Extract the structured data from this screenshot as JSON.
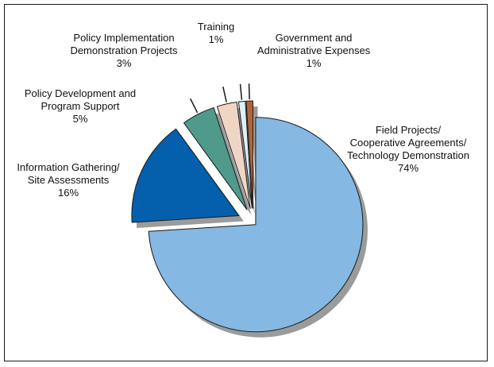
{
  "chart_data": {
    "type": "pie",
    "style": "exploded-3d",
    "slices": [
      {
        "lines": [
          "Field Projects/",
          "Cooperative Agreements/",
          "Technology Demonstration",
          "74%"
        ],
        "value": 74,
        "color": "#85b8e2"
      },
      {
        "lines": [
          "Information Gathering/",
          "Site Assessments",
          "16%"
        ],
        "value": 16,
        "color": "#045fad"
      },
      {
        "lines": [
          "Policy Development and",
          "Program Support",
          "5%"
        ],
        "value": 5,
        "color": "#4f9a8a"
      },
      {
        "lines": [
          "Policy Implementation",
          "Demonstration Projects",
          "3%"
        ],
        "value": 3,
        "color": "#efd6c4"
      },
      {
        "lines": [
          "Training",
          "1%"
        ],
        "value": 1,
        "color": "#dff0f7"
      },
      {
        "lines": [
          "Government and",
          "Administrative Expenses",
          "1%"
        ],
        "value": 1,
        "color": "#b3653a"
      }
    ]
  }
}
